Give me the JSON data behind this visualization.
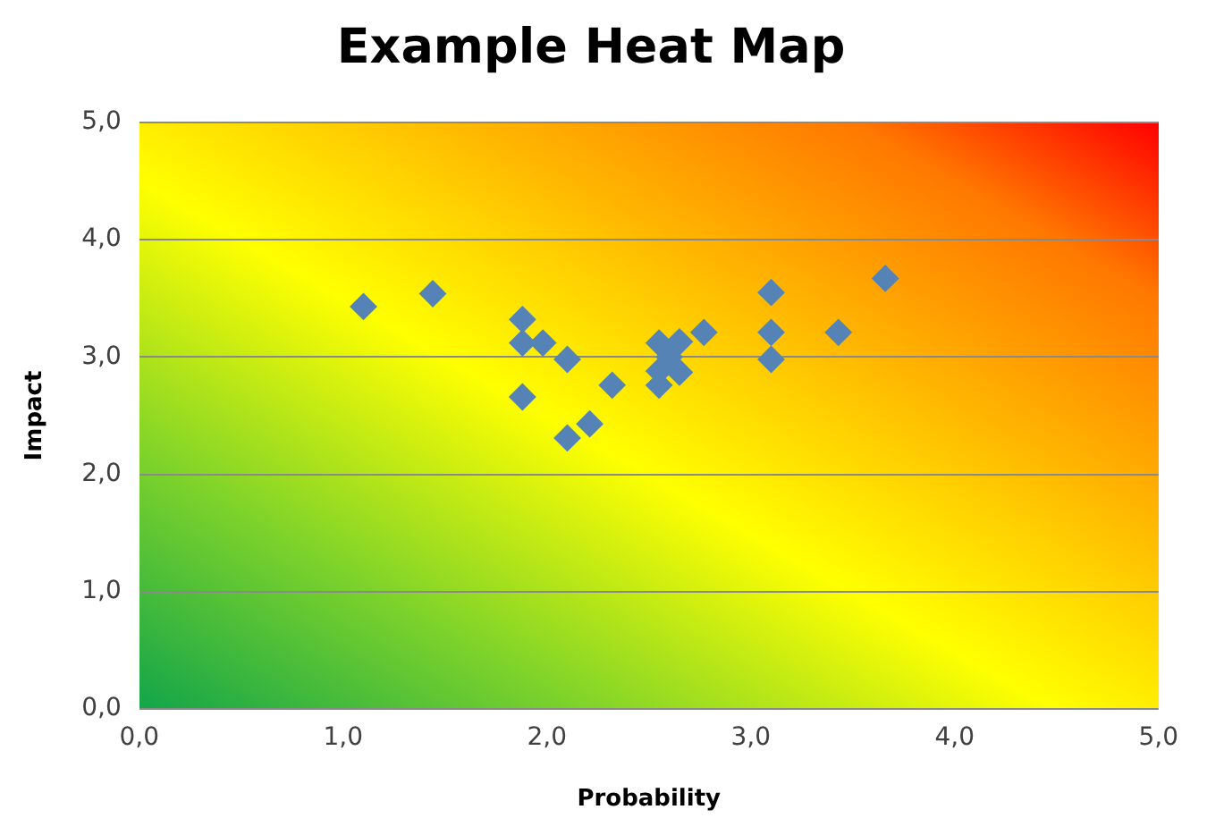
{
  "chart_data": {
    "type": "scatter",
    "title": "Example Heat Map",
    "xlabel": "Probability",
    "ylabel": "Impact",
    "series": [
      {
        "color": "#5683b5",
        "x": [
          1.1,
          1.44,
          1.88,
          1.88,
          1.98,
          2.1,
          1.88,
          2.1,
          2.21,
          2.32,
          2.55,
          2.65,
          2.77,
          2.55,
          2.65,
          2.55,
          2.6,
          3.1,
          3.1,
          3.1,
          3.43,
          3.66
        ],
        "values": [
          3.43,
          3.54,
          3.32,
          3.12,
          3.12,
          2.98,
          2.66,
          2.31,
          2.43,
          2.76,
          3.12,
          3.13,
          3.21,
          2.88,
          2.87,
          2.76,
          3.0,
          3.55,
          3.21,
          2.98,
          3.21,
          3.67
        ]
      }
    ],
    "xlim": [
      0,
      5
    ],
    "ylim": [
      0,
      5
    ],
    "xticks": [
      {
        "value": 0,
        "label": "0,0"
      },
      {
        "value": 1,
        "label": "1,0"
      },
      {
        "value": 2,
        "label": "2,0"
      },
      {
        "value": 3,
        "label": "3,0"
      },
      {
        "value": 4,
        "label": "4,0"
      },
      {
        "value": 5,
        "label": "5,0"
      }
    ],
    "yticks": [
      {
        "value": 0,
        "label": "0,0"
      },
      {
        "value": 1,
        "label": "1,0"
      },
      {
        "value": 2,
        "label": "2,0"
      },
      {
        "value": 3,
        "label": "3,0"
      },
      {
        "value": 4,
        "label": "4,0"
      },
      {
        "value": 5,
        "label": "5,0"
      }
    ],
    "grid": "y",
    "legend": false,
    "marker": "diamond"
  }
}
